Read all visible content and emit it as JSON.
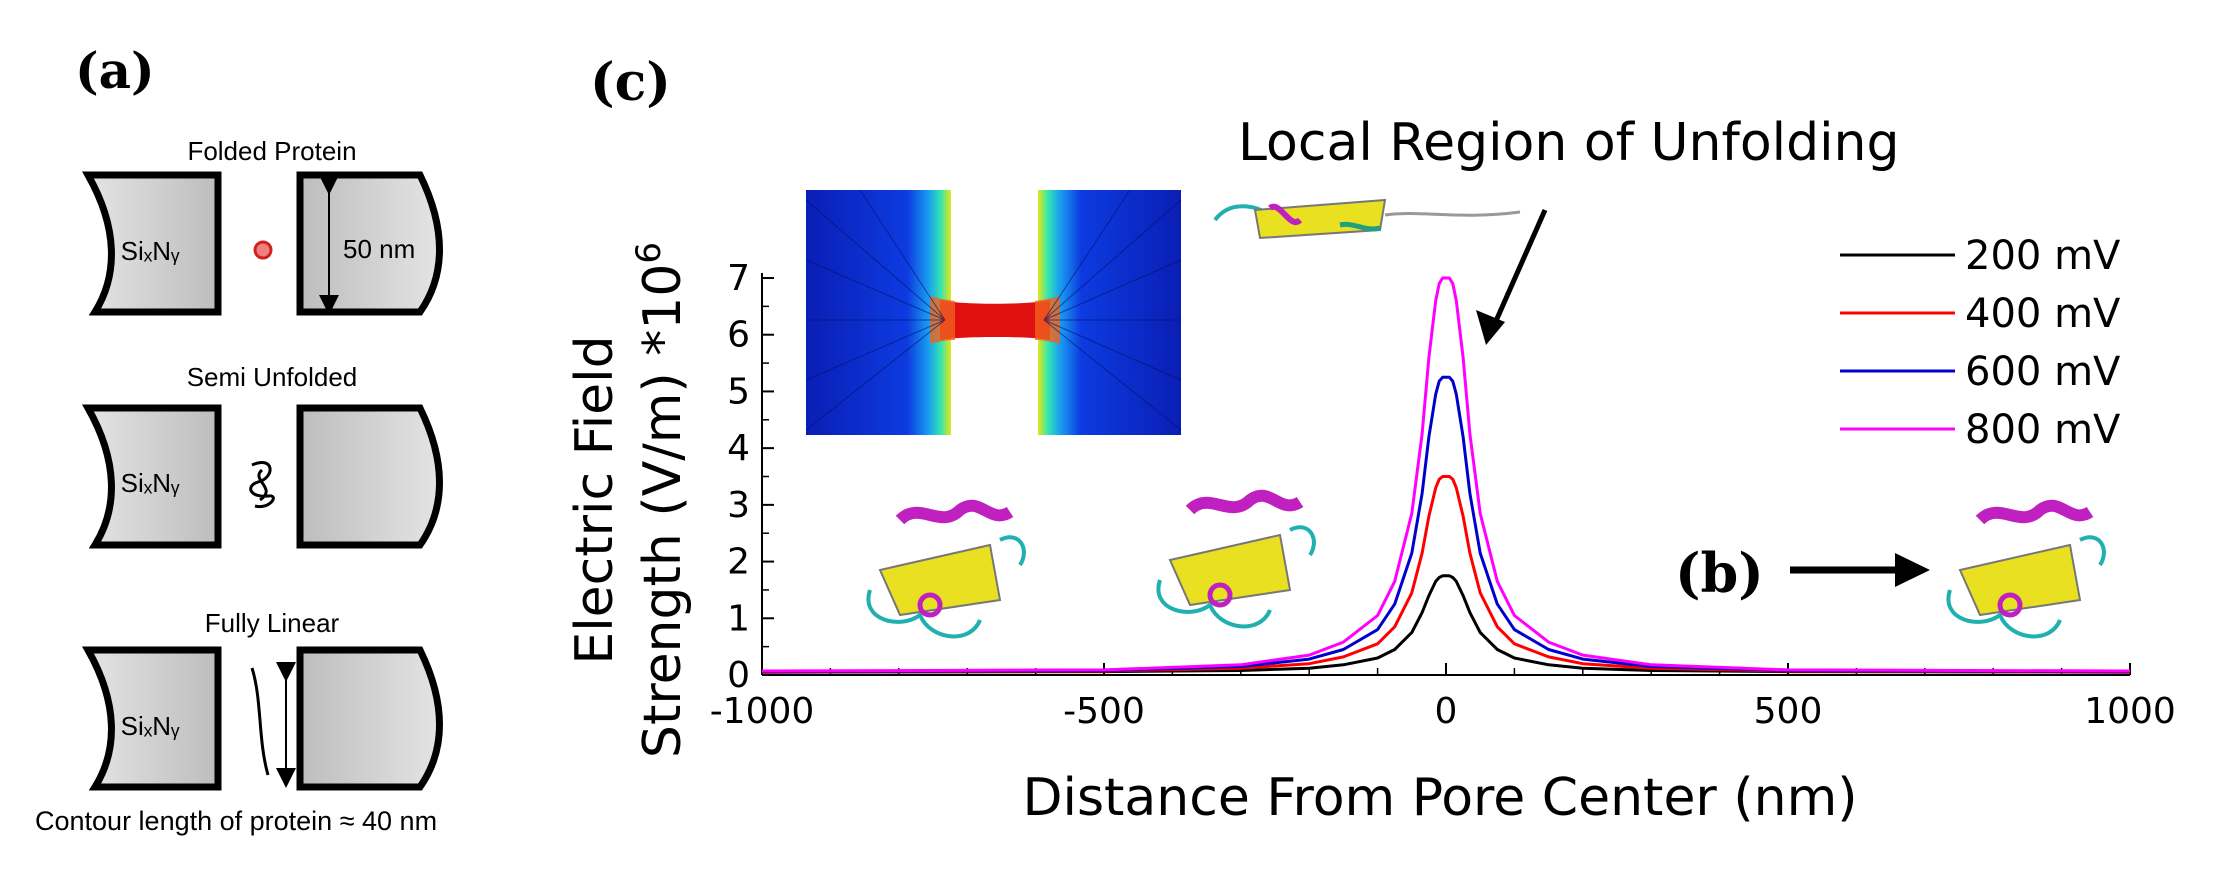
{
  "panels": {
    "a": {
      "label": "(a)",
      "rows": [
        {
          "title": "Folded Protein",
          "material": "SiₓNᵧ",
          "dimension": "50 nm"
        },
        {
          "title": "Semi Unfolded",
          "material": "SiₓNᵧ"
        },
        {
          "title": "Fully Linear",
          "material": "SiₓNᵧ"
        }
      ],
      "caption": "Contour length of protein ≈ 40 nm"
    },
    "b": {
      "label": "(b)"
    },
    "c": {
      "label": "(c)",
      "annotation": "Local Region of Unfolding"
    }
  },
  "chart_data": {
    "type": "line",
    "title": "",
    "xlabel": "Distance From Pore Center (nm)",
    "ylabel_line1": "Electric Field",
    "ylabel_line2": "Strength (V/m) *10",
    "ylabel_sup": "6",
    "xlim": [
      -1000,
      1000
    ],
    "ylim": [
      0,
      7
    ],
    "xticks": [
      -1000,
      -500,
      0,
      500,
      1000
    ],
    "yticks": [
      0,
      1,
      2,
      3,
      4,
      5,
      6,
      7
    ],
    "grid": false,
    "legend_position": "top-right",
    "x": [
      -1000,
      -500,
      -300,
      -200,
      -150,
      -100,
      -75,
      -50,
      -35,
      -25,
      -15,
      -10,
      -5,
      0,
      5,
      10,
      15,
      25,
      35,
      50,
      75,
      100,
      150,
      200,
      300,
      500,
      1000
    ],
    "series": [
      {
        "name": "200 mV",
        "color": "#000000",
        "peak": 1.75,
        "values": [
          0.05,
          0.06,
          0.08,
          0.12,
          0.18,
          0.3,
          0.45,
          0.75,
          1.1,
          1.4,
          1.65,
          1.72,
          1.75,
          1.75,
          1.75,
          1.72,
          1.65,
          1.4,
          1.1,
          0.75,
          0.45,
          0.3,
          0.18,
          0.12,
          0.08,
          0.06,
          0.05
        ]
      },
      {
        "name": "400 mV",
        "color": "#ff0000",
        "peak": 3.5,
        "values": [
          0.05,
          0.07,
          0.12,
          0.2,
          0.32,
          0.55,
          0.85,
          1.45,
          2.15,
          2.8,
          3.3,
          3.45,
          3.5,
          3.5,
          3.5,
          3.45,
          3.3,
          2.8,
          2.15,
          1.45,
          0.85,
          0.55,
          0.32,
          0.2,
          0.12,
          0.07,
          0.05
        ]
      },
      {
        "name": "600 mV",
        "color": "#0000cc",
        "peak": 5.25,
        "values": [
          0.06,
          0.08,
          0.15,
          0.28,
          0.45,
          0.8,
          1.25,
          2.15,
          3.2,
          4.2,
          4.95,
          5.18,
          5.25,
          5.25,
          5.25,
          5.18,
          4.95,
          4.2,
          3.2,
          2.15,
          1.25,
          0.8,
          0.45,
          0.28,
          0.15,
          0.08,
          0.06
        ]
      },
      {
        "name": "800 mV",
        "color": "#ff00ff",
        "peak": 7.0,
        "values": [
          0.07,
          0.09,
          0.18,
          0.35,
          0.58,
          1.05,
          1.65,
          2.85,
          4.25,
          5.6,
          6.6,
          6.9,
          7.0,
          7.0,
          7.0,
          6.9,
          6.6,
          5.6,
          4.25,
          2.85,
          1.65,
          1.05,
          0.58,
          0.35,
          0.18,
          0.09,
          0.07
        ]
      }
    ]
  }
}
